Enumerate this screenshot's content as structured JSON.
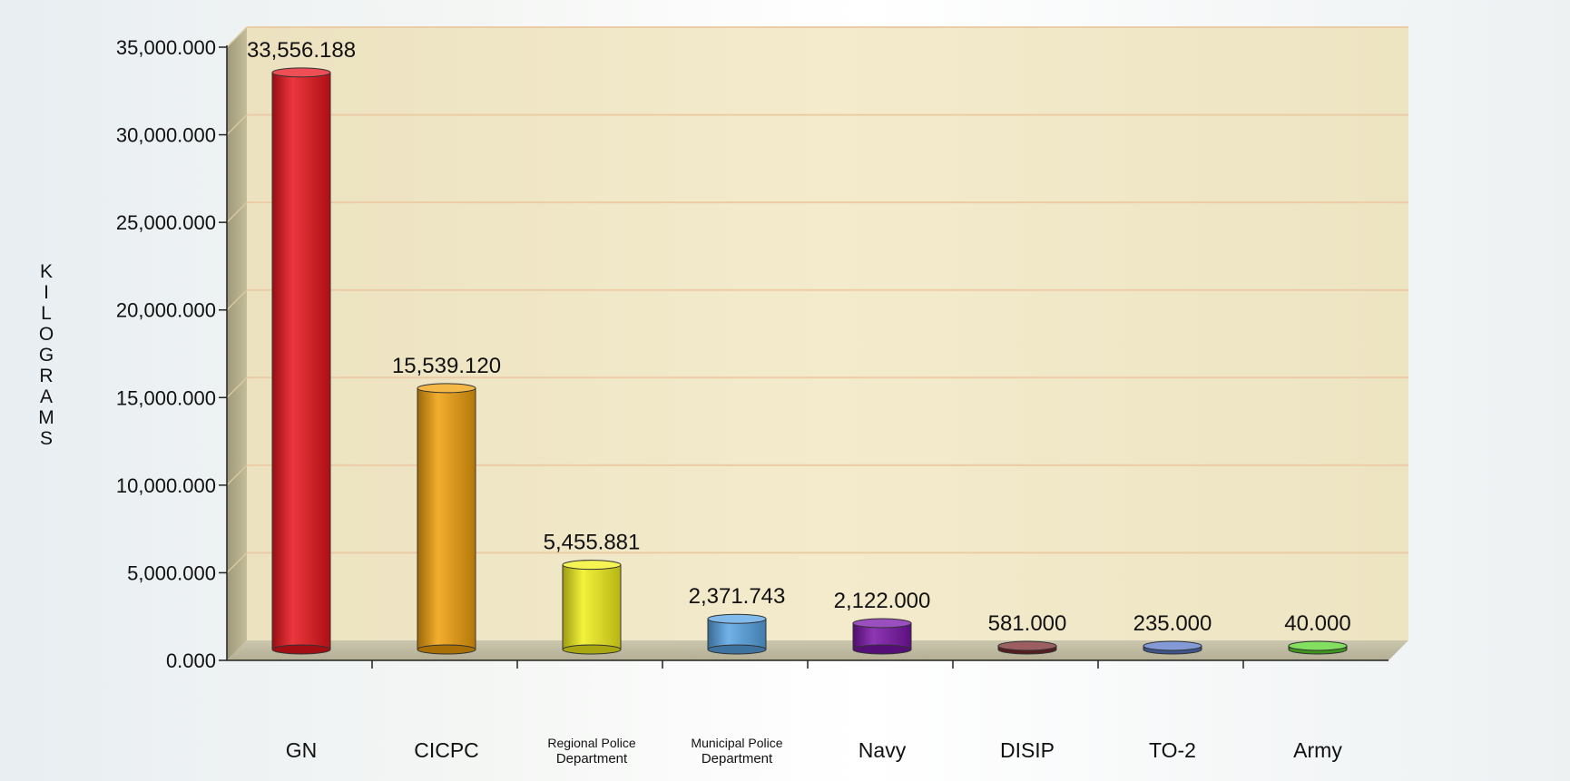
{
  "chart_data": {
    "type": "bar",
    "title": "",
    "xlabel": "",
    "ylabel": "KILOGRAMS",
    "ylim": [
      0,
      35000
    ],
    "grid": true,
    "legend": "none",
    "y_ticks": [
      0,
      5000,
      10000,
      15000,
      20000,
      25000,
      30000,
      35000
    ],
    "y_tick_labels": [
      "0.000",
      "5,000.000",
      "10,000.000",
      "15,000.000",
      "20,000.000",
      "25,000.000",
      "30,000.000",
      "35,000.000"
    ],
    "categories": [
      {
        "line1": "GN",
        "line2": ""
      },
      {
        "line1": "CICPC",
        "line2": ""
      },
      {
        "line1": "Regional Police",
        "line2": "Department"
      },
      {
        "line1": "Municipal Police",
        "line2": "Department"
      },
      {
        "line1": "Navy",
        "line2": ""
      },
      {
        "line1": "DISIP",
        "line2": ""
      },
      {
        "line1": "TO-2",
        "line2": ""
      },
      {
        "line1": "Army",
        "line2": ""
      }
    ],
    "values": [
      33556.188,
      15539.12,
      5455.881,
      2371.743,
      2122.0,
      581.0,
      235.0,
      40.0
    ],
    "value_labels": [
      "33,556.188",
      "15,539.120",
      "5,455.881",
      "2,371.743",
      "2,122.000",
      "581.000",
      "235.000",
      "40.000"
    ],
    "colors": [
      "#e8141c",
      "#f0a00a",
      "#f2f01a",
      "#58a4e4",
      "#7a14a8",
      "#7a2a2e",
      "#5a78c8",
      "#5ad42a"
    ]
  }
}
